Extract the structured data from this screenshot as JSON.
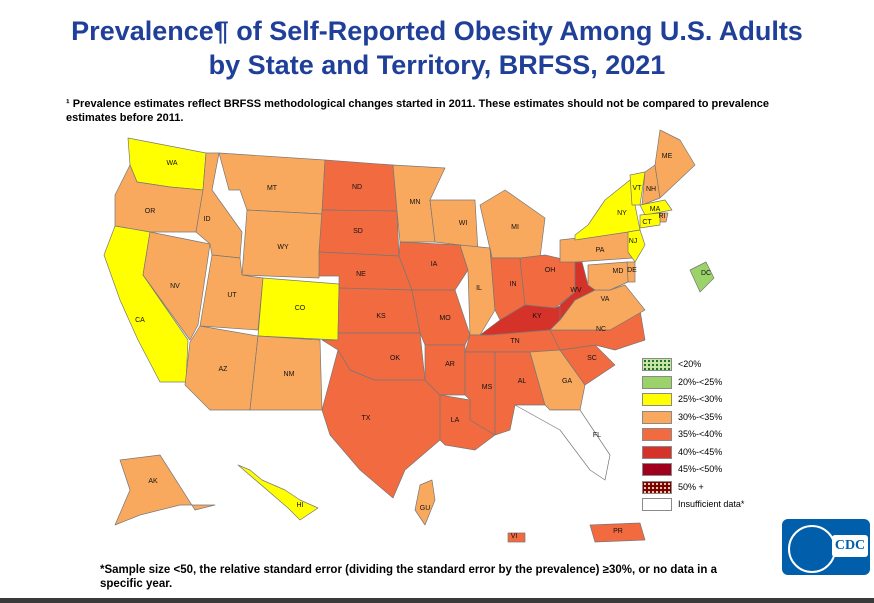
{
  "title_line1": "Prevalence¶ of Self-Reported Obesity Among U.S. Adults",
  "title_line2": "by State and Territory, BRFSS, 2021",
  "footnote": "¹ Prevalence estimates reflect BRFSS methodological changes started in 2011. These estimates should not be compared to prevalence estimates before 2011.",
  "sample_note": "*Sample size <50, the relative standard error (dividing the standard error by the prevalence) ≥30%, or no data in a specific year.",
  "logo_text": "CDC",
  "colors": {
    "lt20": "#c8e6a8",
    "20to25": "#9bd36a",
    "25to30": "#ffff00",
    "30to35": "#f9a95e",
    "35to40": "#f26a40",
    "40to45": "#d5332a",
    "45to50": "#a0001e",
    "50plus": "#7a0000",
    "insufficient": "#ffffff"
  },
  "legend": [
    {
      "key": "lt20",
      "label": "<20%"
    },
    {
      "key": "20to25",
      "label": "20%-<25%"
    },
    {
      "key": "25to30",
      "label": "25%-<30%"
    },
    {
      "key": "30to35",
      "label": "30%-<35%"
    },
    {
      "key": "35to40",
      "label": "35%-<40%"
    },
    {
      "key": "40to45",
      "label": "40%-<45%"
    },
    {
      "key": "45to50",
      "label": "45%-<50%"
    },
    {
      "key": "50plus",
      "label": "50% +"
    },
    {
      "key": "insufficient",
      "label": "Insufficient data*"
    }
  ],
  "states": [
    {
      "abbr": "WA",
      "cat": "25to30"
    },
    {
      "abbr": "OR",
      "cat": "30to35"
    },
    {
      "abbr": "CA",
      "cat": "25to30"
    },
    {
      "abbr": "NV",
      "cat": "30to35"
    },
    {
      "abbr": "ID",
      "cat": "30to35"
    },
    {
      "abbr": "MT",
      "cat": "30to35"
    },
    {
      "abbr": "WY",
      "cat": "30to35"
    },
    {
      "abbr": "UT",
      "cat": "30to35"
    },
    {
      "abbr": "CO",
      "cat": "25to30"
    },
    {
      "abbr": "AZ",
      "cat": "30to35"
    },
    {
      "abbr": "NM",
      "cat": "30to35"
    },
    {
      "abbr": "ND",
      "cat": "35to40"
    },
    {
      "abbr": "SD",
      "cat": "35to40"
    },
    {
      "abbr": "NE",
      "cat": "35to40"
    },
    {
      "abbr": "KS",
      "cat": "35to40"
    },
    {
      "abbr": "OK",
      "cat": "35to40"
    },
    {
      "abbr": "TX",
      "cat": "35to40"
    },
    {
      "abbr": "MN",
      "cat": "30to35"
    },
    {
      "abbr": "IA",
      "cat": "35to40"
    },
    {
      "abbr": "MO",
      "cat": "35to40"
    },
    {
      "abbr": "AR",
      "cat": "35to40"
    },
    {
      "abbr": "LA",
      "cat": "35to40"
    },
    {
      "abbr": "WI",
      "cat": "30to35"
    },
    {
      "abbr": "IL",
      "cat": "30to35"
    },
    {
      "abbr": "MI",
      "cat": "30to35"
    },
    {
      "abbr": "IN",
      "cat": "35to40"
    },
    {
      "abbr": "OH",
      "cat": "35to40"
    },
    {
      "abbr": "KY",
      "cat": "40to45"
    },
    {
      "abbr": "TN",
      "cat": "35to40"
    },
    {
      "abbr": "MS",
      "cat": "35to40"
    },
    {
      "abbr": "AL",
      "cat": "35to40"
    },
    {
      "abbr": "GA",
      "cat": "30to35"
    },
    {
      "abbr": "FL",
      "cat": "insufficient"
    },
    {
      "abbr": "SC",
      "cat": "35to40"
    },
    {
      "abbr": "NC",
      "cat": "35to40"
    },
    {
      "abbr": "VA",
      "cat": "30to35"
    },
    {
      "abbr": "WV",
      "cat": "40to45"
    },
    {
      "abbr": "PA",
      "cat": "30to35"
    },
    {
      "abbr": "NY",
      "cat": "25to30"
    },
    {
      "abbr": "VT",
      "cat": "25to30"
    },
    {
      "abbr": "NH",
      "cat": "30to35"
    },
    {
      "abbr": "ME",
      "cat": "30to35"
    },
    {
      "abbr": "MA",
      "cat": "25to30"
    },
    {
      "abbr": "RI",
      "cat": "30to35"
    },
    {
      "abbr": "CT",
      "cat": "25to30"
    },
    {
      "abbr": "NJ",
      "cat": "25to30"
    },
    {
      "abbr": "DE",
      "cat": "30to35"
    },
    {
      "abbr": "MD",
      "cat": "30to35"
    },
    {
      "abbr": "DC",
      "cat": "20to25"
    },
    {
      "abbr": "AK",
      "cat": "30to35"
    },
    {
      "abbr": "HI",
      "cat": "25to30"
    },
    {
      "abbr": "GU",
      "cat": "30to35"
    },
    {
      "abbr": "PR",
      "cat": "35to40"
    },
    {
      "abbr": "VI",
      "cat": "35to40"
    }
  ]
}
